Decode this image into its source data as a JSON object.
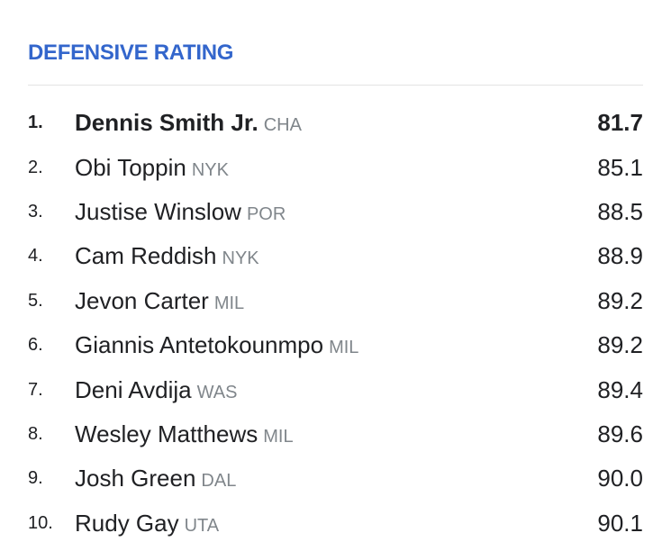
{
  "title": "DEFENSIVE RATING",
  "colors": {
    "title": "#3366cc",
    "text": "#202124",
    "team": "#80868b",
    "divider": "#e3e3e3"
  },
  "rows": [
    {
      "rank": "1.",
      "name": "Dennis Smith Jr.",
      "team": "CHA",
      "value": "81.7"
    },
    {
      "rank": "2.",
      "name": "Obi Toppin",
      "team": "NYK",
      "value": "85.1"
    },
    {
      "rank": "3.",
      "name": "Justise Winslow",
      "team": "POR",
      "value": "88.5"
    },
    {
      "rank": "4.",
      "name": "Cam Reddish",
      "team": "NYK",
      "value": "88.9"
    },
    {
      "rank": "5.",
      "name": "Jevon Carter",
      "team": "MIL",
      "value": "89.2"
    },
    {
      "rank": "6.",
      "name": "Giannis Antetokounmpo",
      "team": "MIL",
      "value": "89.2"
    },
    {
      "rank": "7.",
      "name": "Deni Avdija",
      "team": "WAS",
      "value": "89.4"
    },
    {
      "rank": "8.",
      "name": "Wesley Matthews",
      "team": "MIL",
      "value": "89.6"
    },
    {
      "rank": "9.",
      "name": "Josh Green",
      "team": "DAL",
      "value": "90.0"
    },
    {
      "rank": "10.",
      "name": "Rudy Gay",
      "team": "UTA",
      "value": "90.1"
    }
  ]
}
